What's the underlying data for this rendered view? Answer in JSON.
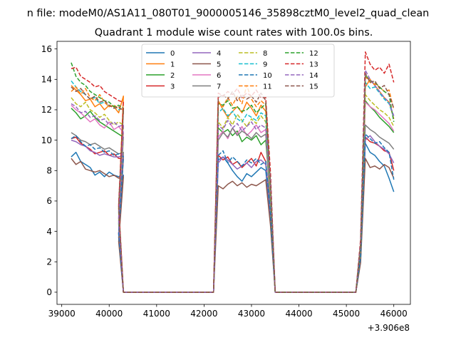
{
  "suptitle": "n file: modeM0/AS1A11_080T01_9000005146_35898cztM0_level2_quad_clean",
  "chart_data": {
    "type": "line",
    "title": "Quadrant 1 module wise count rates with 100.0s bins.",
    "xlabel": "",
    "ylabel": "",
    "x_offset_label": "+3.906e8",
    "xlim": [
      38900,
      46350
    ],
    "ylim": [
      -0.8,
      16.5
    ],
    "xticks": [
      39000,
      40000,
      41000,
      42000,
      43000,
      44000,
      45000,
      46000
    ],
    "yticks": [
      0,
      2,
      4,
      6,
      8,
      10,
      12,
      14,
      16
    ],
    "grid": false,
    "legend": {
      "position": "top-center",
      "columns": 4
    },
    "segments": [
      {
        "start": 39200,
        "count": 12
      },
      {
        "start": 40200,
        "count": 1,
        "fill": 0.45
      },
      {
        "start": 40300,
        "count": 20,
        "fill": 0
      },
      {
        "start": 42300,
        "count": 11
      },
      {
        "start": 43400,
        "count": 1,
        "fill": 0.5
      },
      {
        "start": 43500,
        "count": 18,
        "fill": 0
      },
      {
        "start": 45300,
        "count": 1,
        "fill": 0.22
      },
      {
        "start": 45400,
        "count": 7
      }
    ],
    "series": [
      {
        "name": "0",
        "color": "#1f77b4",
        "dash": false,
        "seg1": [
          8.9,
          9.2,
          8.6,
          8.4,
          8.2,
          7.7,
          7.9,
          7.6,
          7.9,
          7.7,
          7.6,
          7.7
        ],
        "seg2": [
          8.7,
          8.9,
          8.5,
          8.0,
          7.6,
          7.3,
          7.8,
          7.6,
          7.9,
          8.2,
          8.0
        ],
        "seg3": [
          9.8,
          9.2,
          9.0,
          8.6,
          8.3,
          7.5,
          6.6
        ]
      },
      {
        "name": "1",
        "color": "#ff7f0e",
        "dash": false,
        "seg1": [
          13.6,
          13.3,
          13.0,
          12.6,
          12.7,
          12.2,
          12.4,
          12.0,
          12.3,
          12.2,
          11.8,
          12.9
        ],
        "seg2": [
          12.6,
          12.0,
          11.5,
          11.9,
          12.2,
          11.8,
          12.5,
          12.1,
          11.6,
          12.3,
          11.9
        ],
        "seg3": [
          13.5,
          14.0,
          13.6,
          13.2,
          12.8,
          12.5,
          11.4
        ]
      },
      {
        "name": "2",
        "color": "#2ca02c",
        "dash": false,
        "seg1": [
          12.1,
          11.8,
          11.4,
          11.6,
          11.9,
          11.5,
          11.2,
          11.0,
          10.8,
          10.6,
          10.4,
          10.2
        ],
        "seg2": [
          10.8,
          10.5,
          10.7,
          10.3,
          10.6,
          9.9,
          10.2,
          10.0,
          10.3,
          9.7,
          10.0
        ],
        "seg3": [
          12.6,
          12.2,
          11.9,
          11.5,
          11.2,
          10.9,
          10.5
        ]
      },
      {
        "name": "3",
        "color": "#d62728",
        "dash": false,
        "seg1": [
          10.1,
          10.2,
          9.8,
          9.6,
          9.4,
          9.1,
          9.2,
          9.3,
          9.0,
          9.1,
          8.8,
          8.8
        ],
        "seg2": [
          9.0,
          8.7,
          8.9,
          8.4,
          8.6,
          8.2,
          8.5,
          8.8,
          8.3,
          9.2,
          8.6
        ],
        "seg3": [
          10.2,
          9.9,
          9.8,
          9.6,
          9.3,
          9.2,
          8.0
        ]
      },
      {
        "name": "4",
        "color": "#9467bd",
        "dash": false,
        "seg1": [
          10.0,
          9.9,
          9.7,
          9.6,
          9.3,
          9.2,
          9.0,
          9.1,
          9.0,
          8.9,
          8.9,
          9.0
        ],
        "seg2": [
          8.5,
          8.9,
          8.7,
          8.4,
          8.1,
          8.3,
          8.5,
          8.2,
          8.6,
          8.7,
          8.4
        ],
        "seg3": [
          10.0,
          10.3,
          9.9,
          9.6,
          9.4,
          9.1,
          8.5
        ]
      },
      {
        "name": "5",
        "color": "#8c564b",
        "dash": false,
        "seg1": [
          8.8,
          8.4,
          8.6,
          8.1,
          8.0,
          7.9,
          8.0,
          7.8,
          7.6,
          7.7,
          7.5,
          7.6
        ],
        "seg2": [
          7.0,
          6.8,
          7.1,
          7.3,
          7.0,
          7.2,
          6.9,
          7.1,
          7.0,
          7.2,
          7.4
        ],
        "seg3": [
          8.8,
          8.2,
          8.3,
          8.1,
          8.4,
          8.2,
          7.5
        ]
      },
      {
        "name": "6",
        "color": "#e377c2",
        "dash": false,
        "seg1": [
          12.3,
          12.0,
          11.8,
          11.5,
          11.2,
          11.4,
          11.0,
          10.8,
          11.2,
          10.7,
          10.9,
          10.5
        ],
        "seg2": [
          10.2,
          10.6,
          10.1,
          10.8,
          10.4,
          10.9,
          10.3,
          10.6,
          11.0,
          10.5,
          10.7
        ],
        "seg3": [
          12.5,
          12.2,
          12.0,
          11.7,
          11.4,
          11.1,
          10.6
        ]
      },
      {
        "name": "7",
        "color": "#7f7f7f",
        "dash": false,
        "seg1": [
          10.5,
          10.3,
          10.0,
          9.9,
          9.7,
          9.8,
          9.6,
          9.4,
          9.5,
          9.3,
          9.1,
          9.2
        ],
        "seg2": [
          10.0,
          10.5,
          10.2,
          10.8,
          10.3,
          10.6,
          10.4,
          10.1,
          10.5,
          10.2,
          10.4
        ],
        "seg3": [
          11.0,
          10.7,
          10.5,
          10.2,
          10.0,
          9.8,
          9.4
        ]
      },
      {
        "name": "8",
        "color": "#bcbd22",
        "dash": true,
        "seg1": [
          12.8,
          12.4,
          12.2,
          12.5,
          12.0,
          11.8,
          11.5,
          11.7,
          11.3,
          11.0,
          11.2,
          11.0
        ],
        "seg2": [
          11.2,
          10.8,
          11.5,
          11.0,
          11.7,
          11.3,
          10.9,
          11.4,
          11.1,
          11.6,
          11.2
        ],
        "seg3": [
          13.0,
          12.6,
          12.3,
          12.0,
          11.8,
          11.5,
          10.9
        ]
      },
      {
        "name": "9",
        "color": "#17becf",
        "dash": true,
        "seg1": [
          13.9,
          13.5,
          13.2,
          13.0,
          12.7,
          12.8,
          12.4,
          12.5,
          12.2,
          12.3,
          12.0,
          12.1
        ],
        "seg2": [
          11.8,
          12.1,
          11.6,
          11.9,
          11.4,
          11.2,
          11.7,
          11.5,
          11.3,
          11.8,
          11.6
        ],
        "seg3": [
          13.8,
          13.4,
          13.5,
          13.1,
          12.7,
          12.4,
          11.5
        ]
      },
      {
        "name": "10",
        "color": "#1f77b4",
        "dash": true,
        "seg1": [
          10.1,
          10.3,
          9.9,
          9.6,
          9.7,
          9.4,
          9.5,
          9.2,
          9.3,
          9.0,
          9.1,
          8.9
        ],
        "seg2": [
          9.0,
          9.3,
          8.5,
          8.9,
          8.6,
          8.3,
          8.7,
          8.5,
          8.8,
          8.4,
          8.6
        ],
        "seg3": [
          10.4,
          10.1,
          9.8,
          9.9,
          9.5,
          9.2,
          7.4
        ]
      },
      {
        "name": "11",
        "color": "#ff7f0e",
        "dash": true,
        "seg1": [
          13.2,
          13.5,
          13.0,
          13.4,
          12.8,
          12.6,
          13.0,
          12.5,
          12.2,
          12.3,
          12.1,
          12.0
        ],
        "seg2": [
          12.5,
          12.2,
          12.8,
          12.3,
          12.9,
          12.4,
          13.6,
          12.7,
          12.2,
          12.6,
          12.3
        ],
        "seg3": [
          14.2,
          13.8,
          13.7,
          13.5,
          13.2,
          13.3,
          12.0
        ]
      },
      {
        "name": "12",
        "color": "#2ca02c",
        "dash": true,
        "seg1": [
          15.1,
          14.2,
          13.8,
          13.6,
          13.2,
          13.0,
          12.8,
          12.6,
          12.5,
          12.2,
          12.3,
          12.1
        ],
        "seg2": [
          12.4,
          12.3,
          12.6,
          12.1,
          12.2,
          11.9,
          12.0,
          12.3,
          11.8,
          12.1,
          12.4
        ],
        "seg3": [
          14.3,
          13.9,
          13.8,
          13.5,
          13.2,
          13.0,
          11.2
        ]
      },
      {
        "name": "13",
        "color": "#d62728",
        "dash": true,
        "seg1": [
          14.7,
          14.8,
          14.2,
          14.0,
          13.8,
          13.5,
          13.6,
          13.2,
          13.0,
          12.8,
          12.6,
          12.5
        ],
        "seg2": [
          13.1,
          12.9,
          13.2,
          13.0,
          13.4,
          12.8,
          13.1,
          12.9,
          13.3,
          12.8,
          12.8
        ],
        "seg3": [
          15.8,
          15.0,
          14.6,
          14.8,
          14.4,
          15.0,
          13.8
        ]
      },
      {
        "name": "14",
        "color": "#9467bd",
        "dash": true,
        "seg1": [
          12.4,
          12.2,
          11.8,
          11.9,
          11.5,
          11.6,
          11.3,
          11.4,
          11.0,
          11.2,
          10.9,
          11.0
        ],
        "seg2": [
          11.0,
          10.7,
          11.3,
          10.8,
          11.1,
          10.6,
          10.9,
          11.2,
          10.7,
          11.0,
          10.8
        ],
        "seg3": [
          14.6,
          14.0,
          13.6,
          13.2,
          12.8,
          12.5,
          11.6
        ]
      },
      {
        "name": "15",
        "color": "#8c564b",
        "dash": true,
        "seg1": [
          13.5,
          13.2,
          13.4,
          13.0,
          12.7,
          12.9,
          12.5,
          12.6,
          12.3,
          12.1,
          12.2,
          11.9
        ],
        "seg2": [
          12.8,
          13.0,
          12.7,
          13.2,
          12.6,
          13.0,
          12.7,
          12.9,
          12.5,
          13.1,
          12.6
        ],
        "seg3": [
          14.4,
          13.8,
          13.9,
          13.4,
          13.6,
          13.0,
          12.1
        ]
      }
    ]
  }
}
